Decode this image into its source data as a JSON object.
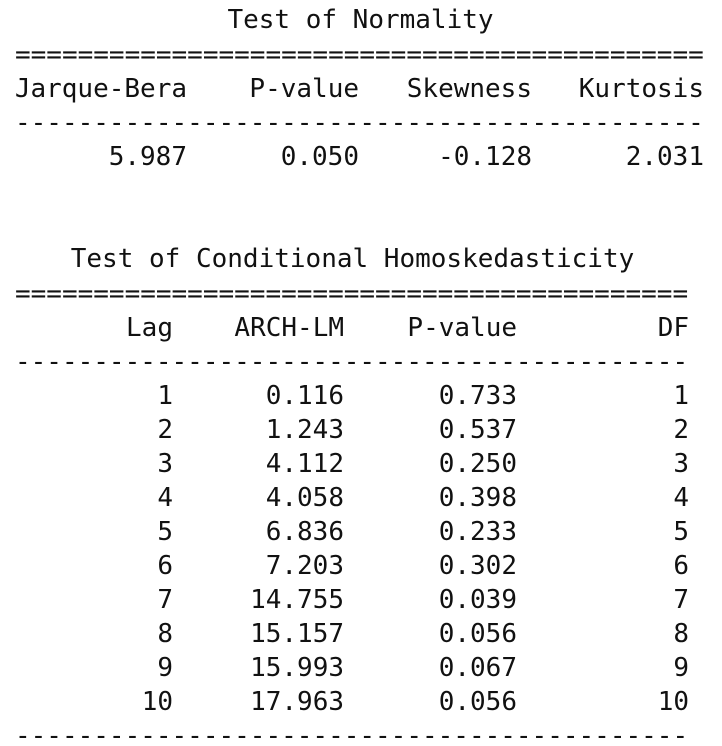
{
  "normality": {
    "title": "Test of Normality",
    "rule_top": "============================================",
    "headers": [
      "Jarque-Bera",
      "P-value",
      "Skewness",
      "Kurtosis"
    ],
    "rule_mid": "--------------------------------------------",
    "rows": [
      [
        "5.987",
        "0.050",
        "-0.128",
        "2.031"
      ]
    ]
  },
  "homoskedasticity": {
    "title": "Test of Conditional Homoskedasticity",
    "rule_top": "===========================================",
    "headers": [
      "Lag",
      "ARCH-LM",
      "P-value",
      "DF"
    ],
    "rule_mid": "-------------------------------------------",
    "rows": [
      [
        "1",
        "0.116",
        "0.733",
        "1"
      ],
      [
        "2",
        "1.243",
        "0.537",
        "2"
      ],
      [
        "3",
        "4.112",
        "0.250",
        "3"
      ],
      [
        "4",
        "4.058",
        "0.398",
        "4"
      ],
      [
        "5",
        "6.836",
        "0.233",
        "5"
      ],
      [
        "6",
        "7.203",
        "0.302",
        "6"
      ],
      [
        "7",
        "14.755",
        "0.039",
        "7"
      ],
      [
        "8",
        "15.157",
        "0.056",
        "8"
      ],
      [
        "9",
        "15.993",
        "0.067",
        "9"
      ],
      [
        "10",
        "17.963",
        "0.056",
        "10"
      ]
    ],
    "rule_bottom": "-------------------------------------------"
  }
}
